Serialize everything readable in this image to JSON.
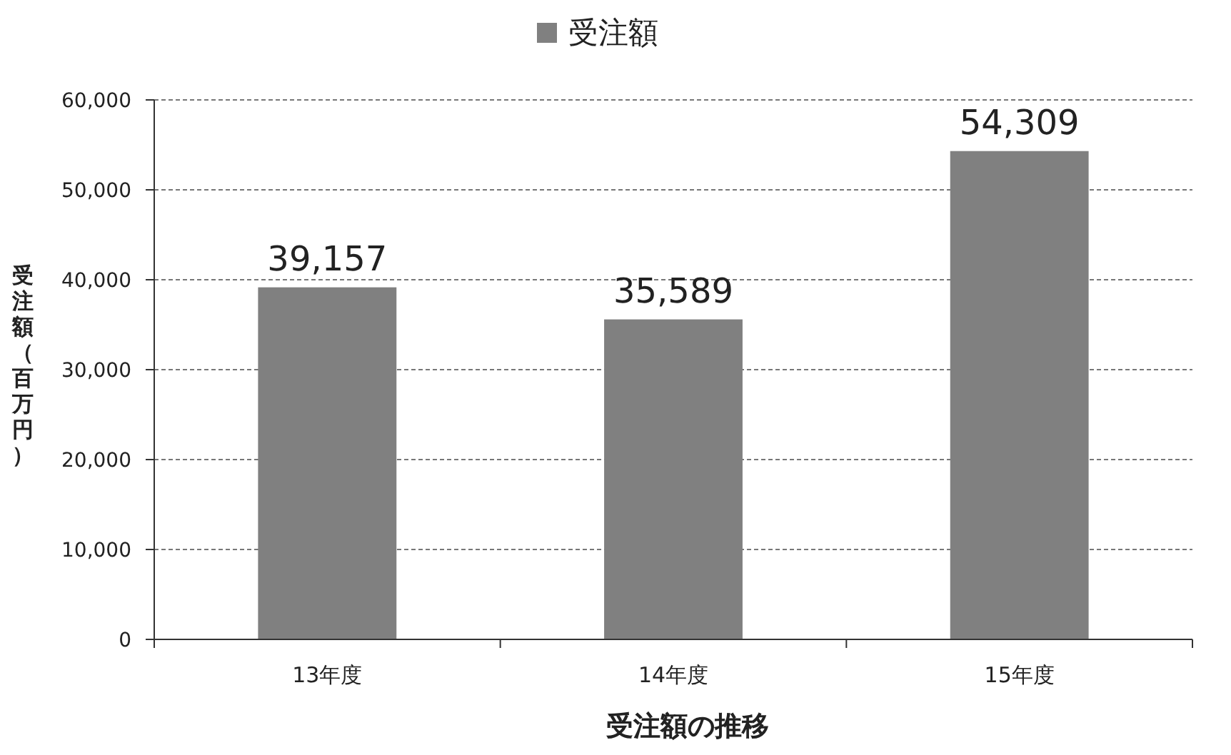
{
  "chart_data": {
    "type": "bar",
    "xlabel": "受注額の推移",
    "ylabel": "受注額（百万円）",
    "categories": [
      "13年度",
      "14年度",
      "15年度"
    ],
    "series": [
      {
        "name": "受注額",
        "color": "#808080",
        "values": [
          39157,
          35589,
          54309
        ],
        "value_labels": [
          "39,157",
          "35,589",
          "54,309"
        ]
      }
    ],
    "ylim": [
      0,
      60000
    ],
    "yticks": [
      {
        "value": 0,
        "label": "0"
      },
      {
        "value": 10000,
        "label": "10,000"
      },
      {
        "value": 20000,
        "label": "20,000"
      },
      {
        "value": 30000,
        "label": "30,000"
      },
      {
        "value": 40000,
        "label": "40,000"
      },
      {
        "value": 50000,
        "label": "50,000"
      },
      {
        "value": 60000,
        "label": "60,000"
      }
    ],
    "grid": "y",
    "legend": "top"
  }
}
